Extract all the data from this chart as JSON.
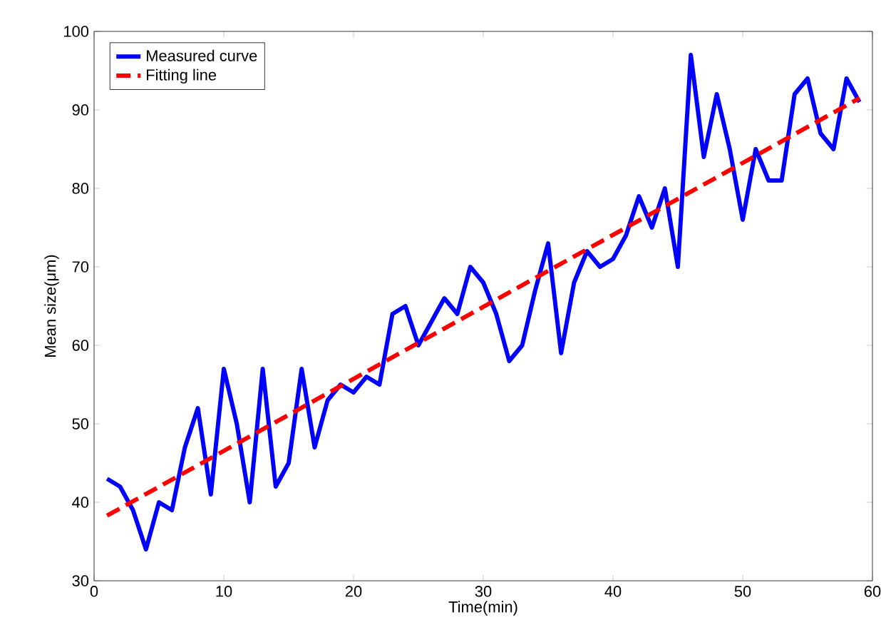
{
  "chart_data": {
    "type": "line",
    "xlabel": "Time(min)",
    "ylabel": "Mean size(μm)",
    "xlim": [
      0,
      60
    ],
    "ylim": [
      30,
      100
    ],
    "xticks": [
      0,
      10,
      20,
      30,
      40,
      50,
      60
    ],
    "yticks": [
      30,
      40,
      50,
      60,
      70,
      80,
      90,
      100
    ],
    "legend": "top left",
    "grid": false,
    "series": [
      {
        "name": "Measured curve",
        "color": "#0000ff",
        "line_style": "solid",
        "x": [
          1,
          2,
          3,
          4,
          5,
          6,
          7,
          8,
          9,
          10,
          11,
          12,
          13,
          14,
          15,
          16,
          17,
          18,
          19,
          20,
          21,
          22,
          23,
          24,
          25,
          26,
          27,
          28,
          29,
          30,
          31,
          32,
          33,
          34,
          35,
          36,
          37,
          38,
          39,
          40,
          41,
          42,
          43,
          44,
          45,
          46,
          47,
          48,
          49,
          50,
          51,
          52,
          53,
          54,
          55,
          56,
          57,
          58,
          59
        ],
        "values": [
          43,
          42,
          39,
          34,
          40,
          39,
          47,
          52,
          41,
          57,
          50,
          40,
          57,
          42,
          45,
          57,
          47,
          53,
          55,
          54,
          56,
          55,
          64,
          65,
          60,
          63,
          66,
          64,
          70,
          68,
          64,
          58,
          60,
          67,
          73,
          59,
          68,
          72,
          70,
          71,
          74,
          79,
          75,
          80,
          70,
          97,
          84,
          92,
          85,
          76,
          85,
          81,
          81,
          92,
          94,
          87,
          85,
          94,
          91
        ]
      },
      {
        "name": "Fitting line",
        "color": "#ff0000",
        "line_style": "dashed",
        "x": [
          1,
          59
        ],
        "values": [
          38.3,
          91.5
        ]
      }
    ]
  }
}
